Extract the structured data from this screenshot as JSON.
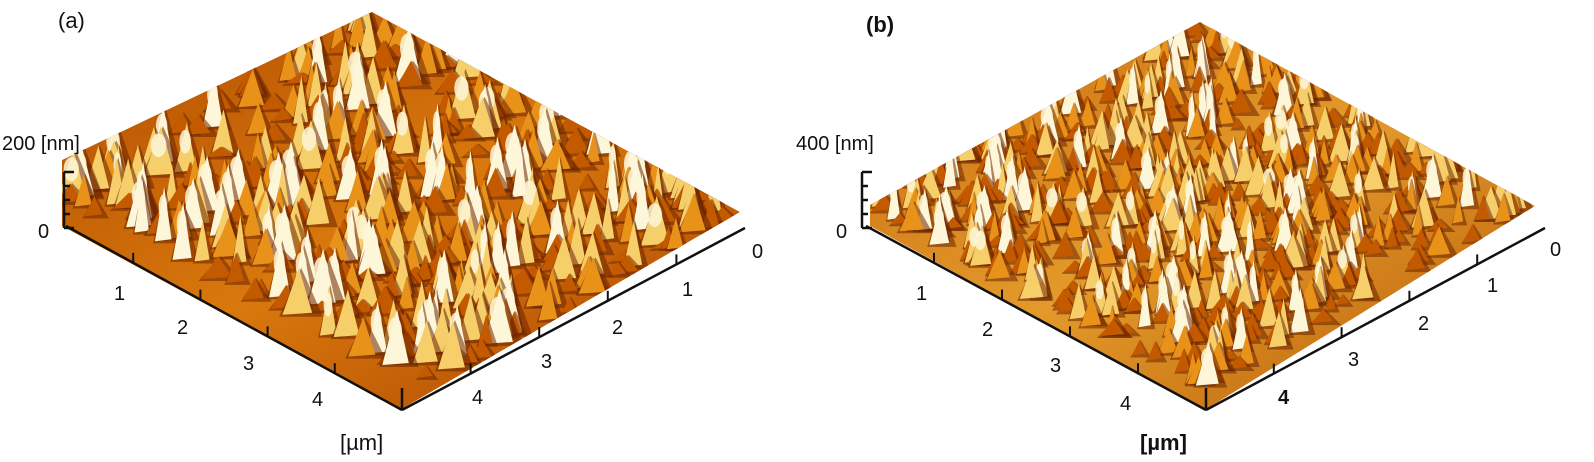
{
  "panels": [
    {
      "label": "(a)",
      "z_top": "200 [nm]",
      "z_zero": "0",
      "left_ticks": [
        "1",
        "2",
        "3",
        "4"
      ],
      "right_ticks": [
        "0",
        "1",
        "2",
        "3",
        "4"
      ],
      "unit": "[µm]"
    },
    {
      "label": "(b)",
      "z_top": "400 [nm]",
      "z_zero": "0",
      "left_ticks": [
        "1",
        "2",
        "3",
        "4"
      ],
      "right_ticks": [
        "0",
        "1",
        "2",
        "3",
        "4"
      ],
      "unit": "[µm]"
    }
  ],
  "colors": {
    "dark": "#6b2400",
    "mid": "#c45a00",
    "orange": "#e8921a",
    "light": "#f7cf6a",
    "highlight": "#fdf6d8"
  }
}
